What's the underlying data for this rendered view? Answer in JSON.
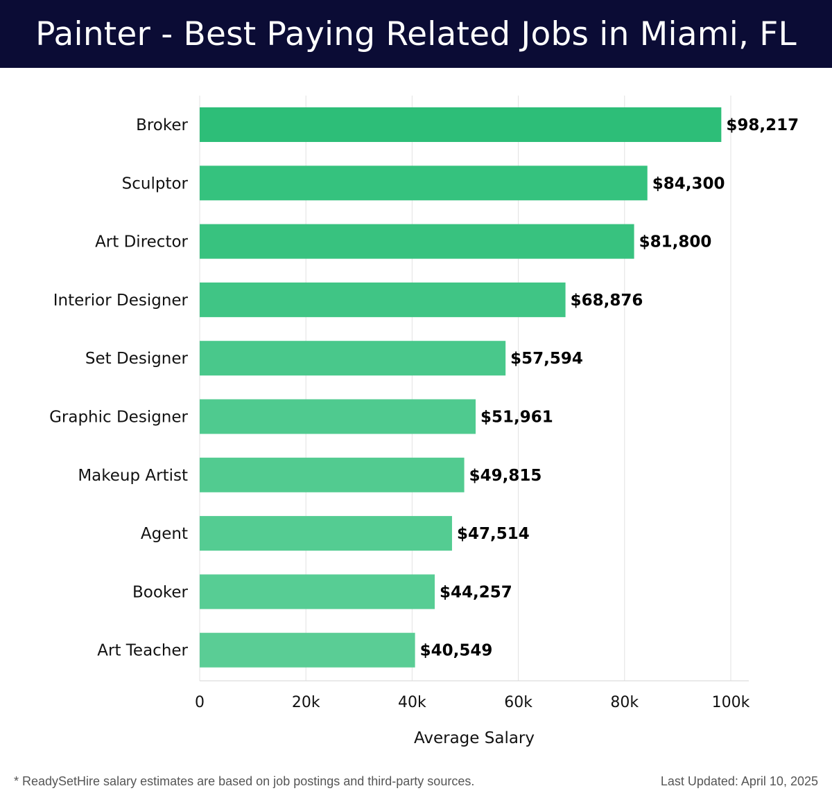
{
  "header": {
    "title": "Painter - Best Paying Related Jobs in Miami, FL"
  },
  "chart_data": {
    "type": "bar",
    "orientation": "horizontal",
    "categories": [
      "Broker",
      "Sculptor",
      "Art Director",
      "Interior Designer",
      "Set Designer",
      "Graphic Designer",
      "Makeup Artist",
      "Agent",
      "Booker",
      "Art Teacher"
    ],
    "values": [
      98217,
      84300,
      81800,
      68876,
      57594,
      51961,
      49815,
      47514,
      44257,
      40549
    ],
    "value_labels": [
      "$98,217",
      "$84,300",
      "$81,800",
      "$68,876",
      "$57,594",
      "$51,961",
      "$49,815",
      "$47,514",
      "$44,257",
      "$40,549"
    ],
    "xlim": [
      0,
      103000
    ],
    "xticks": [
      0,
      20000,
      40000,
      60000,
      80000,
      100000
    ],
    "xtick_labels": [
      "0",
      "20k",
      "40k",
      "60k",
      "80k",
      "100k"
    ],
    "xlabel": "Average Salary",
    "ylabel": "",
    "grid": true,
    "bar_colors": [
      "#2dbe78",
      "#35c27e",
      "#38c27f",
      "#40c585",
      "#49c88b",
      "#4fca8f",
      "#52cb90",
      "#54cc92",
      "#57cd94",
      "#5acd95"
    ]
  },
  "footer": {
    "note": "* ReadySetHire salary estimates are based on job postings and third-party sources.",
    "updated": "Last Updated: April 10, 2025"
  }
}
